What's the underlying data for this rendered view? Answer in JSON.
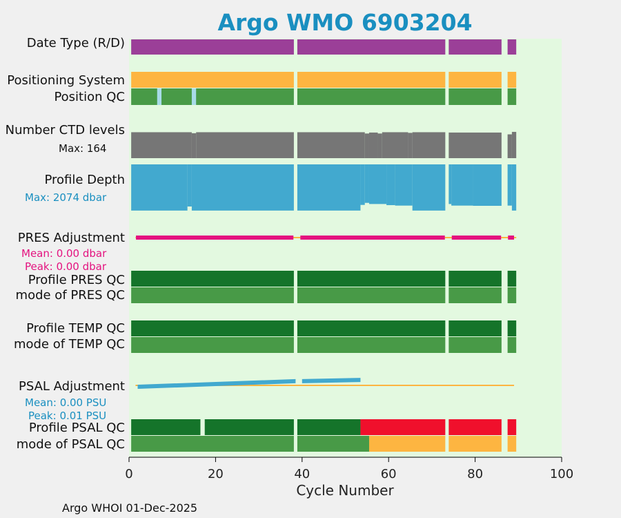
{
  "chart_data": {
    "type": "bar",
    "title": "Argo WMO 6903204",
    "xlabel": "Cycle Number",
    "xlim": [
      0,
      100
    ],
    "xticks": [
      0,
      20,
      40,
      60,
      80,
      100
    ],
    "footer": "Argo WHOI 01-Dec-2025",
    "colors": {
      "title": "#1a8fc0",
      "background": "#e3f9e0",
      "page": "#f0f0f0",
      "data_type": "#9b3f98",
      "positioning": "#fdb541",
      "qc_good": "#489a47",
      "qc_dark": "#15742a",
      "qc_light": "#a8dbe8",
      "qc_bad": "#f0102c",
      "gray": "#767676",
      "depth": "#42a9cf",
      "pres_adj": "#e4127f",
      "orange_line": "#fdb541",
      "psal_adj": "#42a9cf",
      "psal_label": "#1a8fc0"
    },
    "gap_after_cycles": [
      38,
      73,
      86
    ],
    "missing_cycles": [
      87
    ],
    "last_cycle": 89,
    "rows": [
      {
        "label": "Date Type (R/D)"
      },
      {
        "label": "Positioning System"
      },
      {
        "label": "Position QC"
      },
      {
        "label": "Number CTD levels",
        "note": "Max: 164"
      },
      {
        "label": "Profile Depth",
        "note": "Max: 2074 dbar"
      },
      {
        "label": "PRES Adjustment",
        "note_mean": "Mean: 0.00 dbar",
        "note_peak": "Peak: 0.00 dbar"
      },
      {
        "label": "Profile PRES QC"
      },
      {
        "label": "mode of PRES QC"
      },
      {
        "label": "Profile TEMP QC"
      },
      {
        "label": "mode of TEMP QC"
      },
      {
        "label": "PSAL Adjustment",
        "note_mean": "Mean: 0.00 PSU",
        "note_peak": "Peak: 0.01 PSU"
      },
      {
        "label": "Profile PSAL QC"
      },
      {
        "label": "mode of PSAL QC"
      }
    ],
    "position_qc_light_cycles": [
      7,
      15
    ],
    "ctd_levels_max": 164,
    "ctd_levels": [
      {
        "from": 1,
        "to": 14,
        "value": 158
      },
      {
        "from": 15,
        "to": 15,
        "value": 152
      },
      {
        "from": 16,
        "to": 38,
        "value": 158
      },
      {
        "from": 39,
        "to": 54,
        "value": 158
      },
      {
        "from": 55,
        "to": 55,
        "value": 150
      },
      {
        "from": 56,
        "to": 57,
        "value": 156
      },
      {
        "from": 58,
        "to": 58,
        "value": 150
      },
      {
        "from": 59,
        "to": 64,
        "value": 158
      },
      {
        "from": 65,
        "to": 65,
        "value": 154
      },
      {
        "from": 66,
        "to": 73,
        "value": 158
      },
      {
        "from": 74,
        "to": 86,
        "value": 156
      },
      {
        "from": 88,
        "to": 88,
        "value": 145
      },
      {
        "from": 89,
        "to": 89,
        "value": 160
      }
    ],
    "profile_depth_max_dbar": 2074,
    "profile_depth": [
      {
        "from": 1,
        "to": 13,
        "value": 2040
      },
      {
        "from": 14,
        "to": 14,
        "value": 1860
      },
      {
        "from": 15,
        "to": 38,
        "value": 2040
      },
      {
        "from": 39,
        "to": 53,
        "value": 2040
      },
      {
        "from": 54,
        "to": 54,
        "value": 1790
      },
      {
        "from": 55,
        "to": 55,
        "value": 1700
      },
      {
        "from": 56,
        "to": 59,
        "value": 1750
      },
      {
        "from": 60,
        "to": 61,
        "value": 1800
      },
      {
        "from": 62,
        "to": 65,
        "value": 1820
      },
      {
        "from": 66,
        "to": 73,
        "value": 2040
      },
      {
        "from": 74,
        "to": 74,
        "value": 1750
      },
      {
        "from": 75,
        "to": 79,
        "value": 1820
      },
      {
        "from": 80,
        "to": 86,
        "value": 1830
      },
      {
        "from": 88,
        "to": 88,
        "value": 1820
      },
      {
        "from": 89,
        "to": 89,
        "value": 2040
      }
    ],
    "pres_adjustment_segments": [
      [
        2,
        38
      ],
      [
        40,
        73
      ],
      [
        75,
        86
      ],
      [
        88,
        89
      ]
    ],
    "psal_adjustment": [
      {
        "from": 2,
        "to": 38,
        "start": 0.0,
        "end": 0.009
      },
      {
        "from": 40,
        "to": 53,
        "start": 0.009,
        "end": 0.011
      }
    ],
    "profile_psal_qc": [
      {
        "from": 1,
        "to": 16,
        "flag": "dark"
      },
      {
        "from": 18,
        "to": 53,
        "flag": "dark"
      },
      {
        "from": 54,
        "to": 89,
        "flag": "bad"
      }
    ],
    "mode_psal_qc": [
      {
        "from": 1,
        "to": 55,
        "flag": "good"
      },
      {
        "from": 56,
        "to": 89,
        "flag": "orange"
      }
    ]
  }
}
